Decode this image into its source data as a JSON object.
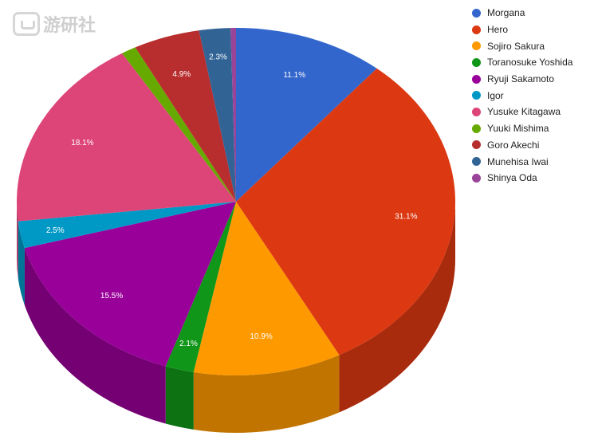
{
  "watermark": {
    "text": "游研社"
  },
  "chart_data": {
    "type": "pie",
    "title": "",
    "legend_position": "right",
    "start_angle_deg": 0,
    "direction": "clockwise",
    "slices": [
      {
        "label": "Morgana",
        "value": 11.1,
        "display": "11.1%",
        "color": "#3366cc",
        "side": "#27509c"
      },
      {
        "label": "Hero",
        "value": 31.1,
        "display": "31.1%",
        "color": "#dc3912",
        "side": "#a82b0e"
      },
      {
        "label": "Sojiro Sakura",
        "value": 10.9,
        "display": "10.9%",
        "color": "#ff9900",
        "side": "#c27400"
      },
      {
        "label": "Toranosuke Yoshida",
        "value": 2.1,
        "display": "2.1%",
        "color": "#109618",
        "side": "#0c7212"
      },
      {
        "label": "Ryuji Sakamoto",
        "value": 15.5,
        "display": "15.5%",
        "color": "#990099",
        "side": "#740074"
      },
      {
        "label": "Igor",
        "value": 2.5,
        "display": "2.5%",
        "color": "#0099c6",
        "side": "#007496"
      },
      {
        "label": "Yusuke Kitagawa",
        "value": 18.1,
        "display": "18.1%",
        "color": "#dd4477",
        "side": "#a8345a"
      },
      {
        "label": "Yuuki Mishima",
        "value": 1.1,
        "display": "",
        "color": "#66aa00",
        "side": "#4e8100"
      },
      {
        "label": "Goro Akechi",
        "value": 4.9,
        "display": "4.9%",
        "color": "#b82e2e",
        "side": "#8c2323"
      },
      {
        "label": "Munehisa Iwai",
        "value": 2.3,
        "display": "2.3%",
        "color": "#316395",
        "side": "#254b71"
      },
      {
        "label": "Shinya Oda",
        "value": 0.4,
        "display": "",
        "color": "#994499",
        "side": "#743474"
      }
    ]
  }
}
